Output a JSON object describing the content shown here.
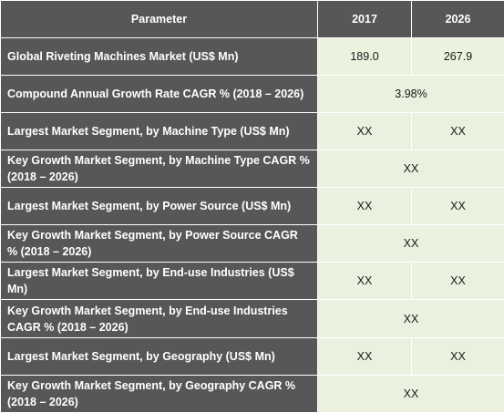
{
  "header": {
    "parameter": "Parameter",
    "year1": "2017",
    "year2": "2026"
  },
  "rows": [
    {
      "label": "Global Riveting Machines Market (US$ Mn)",
      "v2017": "189.0",
      "v2026": "267.9"
    },
    {
      "label": "Compound Annual Growth Rate CAGR % (2018 – 2026)",
      "merged": "3.98%"
    },
    {
      "label": "Largest Market Segment, by Machine Type (US$ Mn)",
      "v2017": "XX",
      "v2026": "XX"
    },
    {
      "label": "Key Growth Market Segment, by Machine Type CAGR % (2018 – 2026)",
      "merged": "XX"
    },
    {
      "label": "Largest Market Segment, by Power Source (US$ Mn)",
      "v2017": "XX",
      "v2026": "XX"
    },
    {
      "label": "Key Growth Market Segment, by Power Source CAGR % (2018 – 2026)",
      "merged": "XX"
    },
    {
      "label": "Largest Market Segment, by End-use Industries (US$ Mn)",
      "v2017": "XX",
      "v2026": "XX"
    },
    {
      "label": "Key Growth Market Segment, by End-use Industries CAGR % (2018 – 2026)",
      "merged": "XX"
    },
    {
      "label": "Largest Market Segment, by Geography (US$ Mn)",
      "v2017": "XX",
      "v2026": "XX"
    },
    {
      "label": "Key Growth Market Segment, by Geography CAGR % (2018 – 2026)",
      "merged": "XX"
    }
  ],
  "colors": {
    "header_bg": "#575757",
    "value_bg": "#ebf1df",
    "border": "#ffffff"
  }
}
